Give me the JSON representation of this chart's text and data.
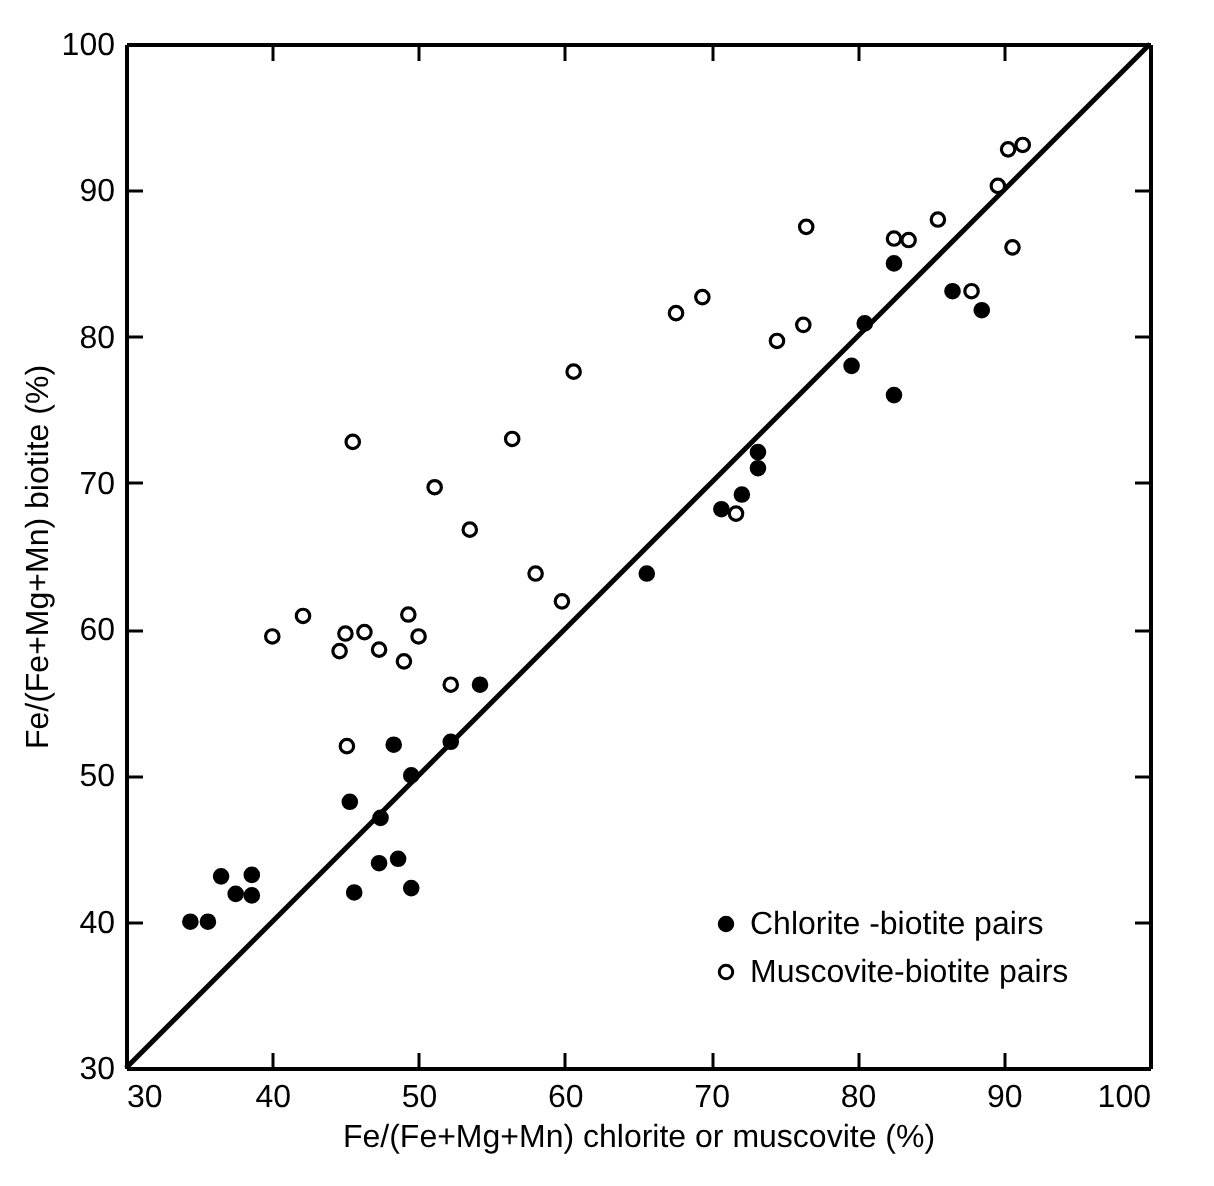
{
  "chart_data": {
    "type": "scatter",
    "xlabel": "Fe/(Fe+Mg+Mn) chlorite or muscovite (%)",
    "ylabel": "Fe/(Fe+Mg+Mn) biotite (%)",
    "xlim": [
      30,
      100
    ],
    "ylim": [
      30,
      100
    ],
    "xticks": [
      30,
      40,
      50,
      60,
      70,
      80,
      90,
      100
    ],
    "yticks": [
      30,
      40,
      50,
      60,
      70,
      80,
      90,
      100
    ],
    "grid": false,
    "legend": "bottom right",
    "series": [
      {
        "name": "Chlorite -biotite pairs",
        "color": "#000000",
        "marker": "circle",
        "x": [
          48.3,
          49.5,
          45.3,
          47.4,
          52.2,
          54.2,
          47.3,
          48.6,
          45.6,
          49.5,
          34.4,
          35.6,
          36.5,
          37.5,
          38.6,
          38.6,
          65.6,
          82.5,
          80.5,
          79.6,
          82.5,
          86.5,
          88.5,
          73.2,
          73.2,
          72.1,
          70.7
        ],
        "values": [
          52.1,
          50.0,
          48.2,
          47.1,
          52.3,
          56.2,
          44.0,
          44.3,
          42.0,
          42.3,
          40.0,
          40.0,
          43.1,
          41.9,
          43.2,
          41.8,
          63.8,
          85.0,
          80.9,
          78.0,
          76.0,
          83.1,
          81.8,
          72.1,
          71.0,
          69.2,
          68.2
        ]
      },
      {
        "name": "Muscovite-biotite pairs",
        "color": "#ffffff",
        "marker": "circle",
        "x": [
          45.1,
          52.2,
          40.0,
          42.1,
          45.5,
          45.0,
          46.3,
          44.6,
          47.3,
          49.3,
          50.0,
          49.0,
          51.1,
          53.5,
          56.4,
          58.0,
          59.8,
          60.6,
          67.6,
          69.4,
          74.5,
          76.3,
          76.5,
          82.5,
          83.5,
          85.5,
          89.6,
          90.3,
          91.3,
          90.6,
          87.8,
          71.7
        ],
        "values": [
          52.0,
          56.2,
          59.5,
          60.9,
          72.8,
          59.7,
          59.8,
          58.5,
          58.6,
          61.0,
          59.5,
          57.8,
          69.7,
          66.8,
          73.0,
          63.8,
          61.9,
          77.6,
          81.6,
          82.7,
          79.7,
          80.8,
          87.5,
          86.7,
          86.6,
          88.0,
          90.3,
          92.8,
          93.1,
          86.1,
          83.1,
          67.9
        ]
      },
      {
        "type": "line",
        "color": "#000000",
        "x": [
          30,
          100
        ],
        "values": [
          30,
          100
        ]
      }
    ]
  }
}
